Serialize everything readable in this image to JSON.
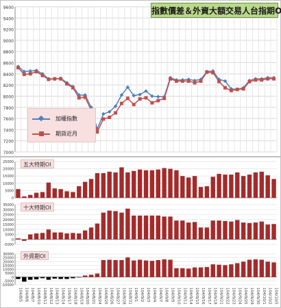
{
  "chart_data": [
    {
      "type": "line",
      "title": "指數價差＆外資大額交易人台指期OI",
      "x": [
        "104/8/5",
        "104/8/6",
        "104/8/7",
        "104/8/10",
        "104/8/11",
        "104/8/12",
        "104/8/13",
        "104/8/14",
        "104/8/17",
        "104/8/18",
        "104/8/19",
        "104/8/20",
        "104/8/21",
        "104/8/24",
        "104/8/25",
        "104/8/26",
        "104/8/27",
        "104/8/28",
        "104/8/31",
        "104/9/1",
        "104/9/2",
        "104/9/3",
        "104/9/4",
        "104/9/7",
        "104/9/8",
        "104/9/9",
        "104/9/10",
        "104/9/11",
        "104/9/14",
        "104/9/15",
        "104/9/16",
        "104/9/17",
        "104/9/18",
        "104/9/21",
        "104/9/22",
        "104/9/23",
        "104/9/24",
        "104/9/25",
        "104/9/29",
        "104/9/30",
        "104/10/1",
        "104/10/2",
        "104/10/5"
      ],
      "ylim": [
        7000,
        9600
      ],
      "yticks": [
        7000,
        7200,
        7400,
        7600,
        7800,
        8000,
        8200,
        8400,
        8600,
        8800,
        9000,
        9200,
        9400,
        9600
      ],
      "legend_position": "lower-left",
      "series": [
        {
          "name": "加權指數",
          "color": "#4f81bd",
          "values": [
            8530,
            8440,
            8450,
            8460,
            8400,
            8310,
            8310,
            8320,
            8240,
            8170,
            8020,
            8020,
            7800,
            7410,
            7680,
            7720,
            7820,
            8020,
            8160,
            8010,
            8030,
            8090,
            8000,
            7990,
            7990,
            8330,
            8290,
            8290,
            8300,
            8280,
            8300,
            8440,
            8450,
            8300,
            8270,
            8130,
            8120,
            8150,
            8280,
            8310,
            8310,
            8330,
            8330
          ]
        },
        {
          "name": "期貨近月",
          "color": "#c0504d",
          "values": [
            8510,
            8390,
            8400,
            8440,
            8370,
            8300,
            8310,
            8310,
            8220,
            8150,
            7970,
            7980,
            7750,
            7360,
            7590,
            7620,
            7700,
            7870,
            7960,
            7850,
            7950,
            7970,
            7880,
            7920,
            7960,
            8310,
            8270,
            8270,
            8270,
            8240,
            8270,
            8430,
            8420,
            8260,
            8150,
            8100,
            8120,
            8130,
            8260,
            8290,
            8290,
            8310,
            8310
          ]
        }
      ]
    },
    {
      "type": "bar",
      "label": "五大特期OI",
      "color": "#a52a2a",
      "ylim": [
        0,
        25000
      ],
      "yticks": [
        0,
        5000,
        10000,
        15000,
        20000,
        25000
      ],
      "values": [
        6000,
        1000,
        2000,
        3500,
        4000,
        10500,
        6500,
        6000,
        4500,
        4000,
        8000,
        11000,
        13000,
        17000,
        17000,
        18000,
        17500,
        21000,
        17500,
        18500,
        19500,
        19000,
        19000,
        19500,
        20500,
        20000,
        19000,
        15000,
        14000,
        15000,
        7500,
        8000,
        14500,
        16500,
        16000,
        16000,
        17500,
        15000,
        16000,
        17500,
        18000,
        15500,
        13000
      ]
    },
    {
      "type": "bar",
      "label": "十大特期OI",
      "color": "#a52a2a",
      "ylim": [
        -5000,
        35000
      ],
      "yticks": [
        -5000,
        0,
        5000,
        10000,
        15000,
        20000,
        25000,
        30000,
        35000
      ],
      "values": [
        1000,
        -1500,
        5000,
        6000,
        6500,
        10000,
        7000,
        7000,
        6000,
        6500,
        6000,
        9000,
        12000,
        16000,
        27000,
        29000,
        28500,
        27000,
        31000,
        24000,
        24000,
        24000,
        24000,
        24000,
        23000,
        23000,
        19000,
        19000,
        17000,
        17500,
        12000,
        12000,
        19000,
        19000,
        18500,
        18000,
        19500,
        17000,
        16500,
        17000,
        18000,
        15000,
        15500
      ]
    },
    {
      "type": "bar",
      "label": "外資期OI",
      "color": "#a52a2a",
      "negative_color": "#000000",
      "ylim": [
        -10000,
        30000
      ],
      "yticks": [
        -10000,
        -5000,
        0,
        5000,
        10000,
        15000,
        20000,
        25000,
        30000
      ],
      "values": [
        -2500,
        -6000,
        -3500,
        -3000,
        -1500,
        -3500,
        -2000,
        -2500,
        -2500,
        -1500,
        -500,
        2000,
        3000,
        4500,
        22000,
        22500,
        22000,
        22000,
        25500,
        21500,
        22500,
        21500,
        21000,
        22000,
        23000,
        22500,
        11500,
        11500,
        11000,
        12500,
        12500,
        13000,
        16500,
        16000,
        15500,
        16500,
        18000,
        20000,
        22500,
        23000,
        22500,
        20000,
        19000
      ]
    }
  ]
}
